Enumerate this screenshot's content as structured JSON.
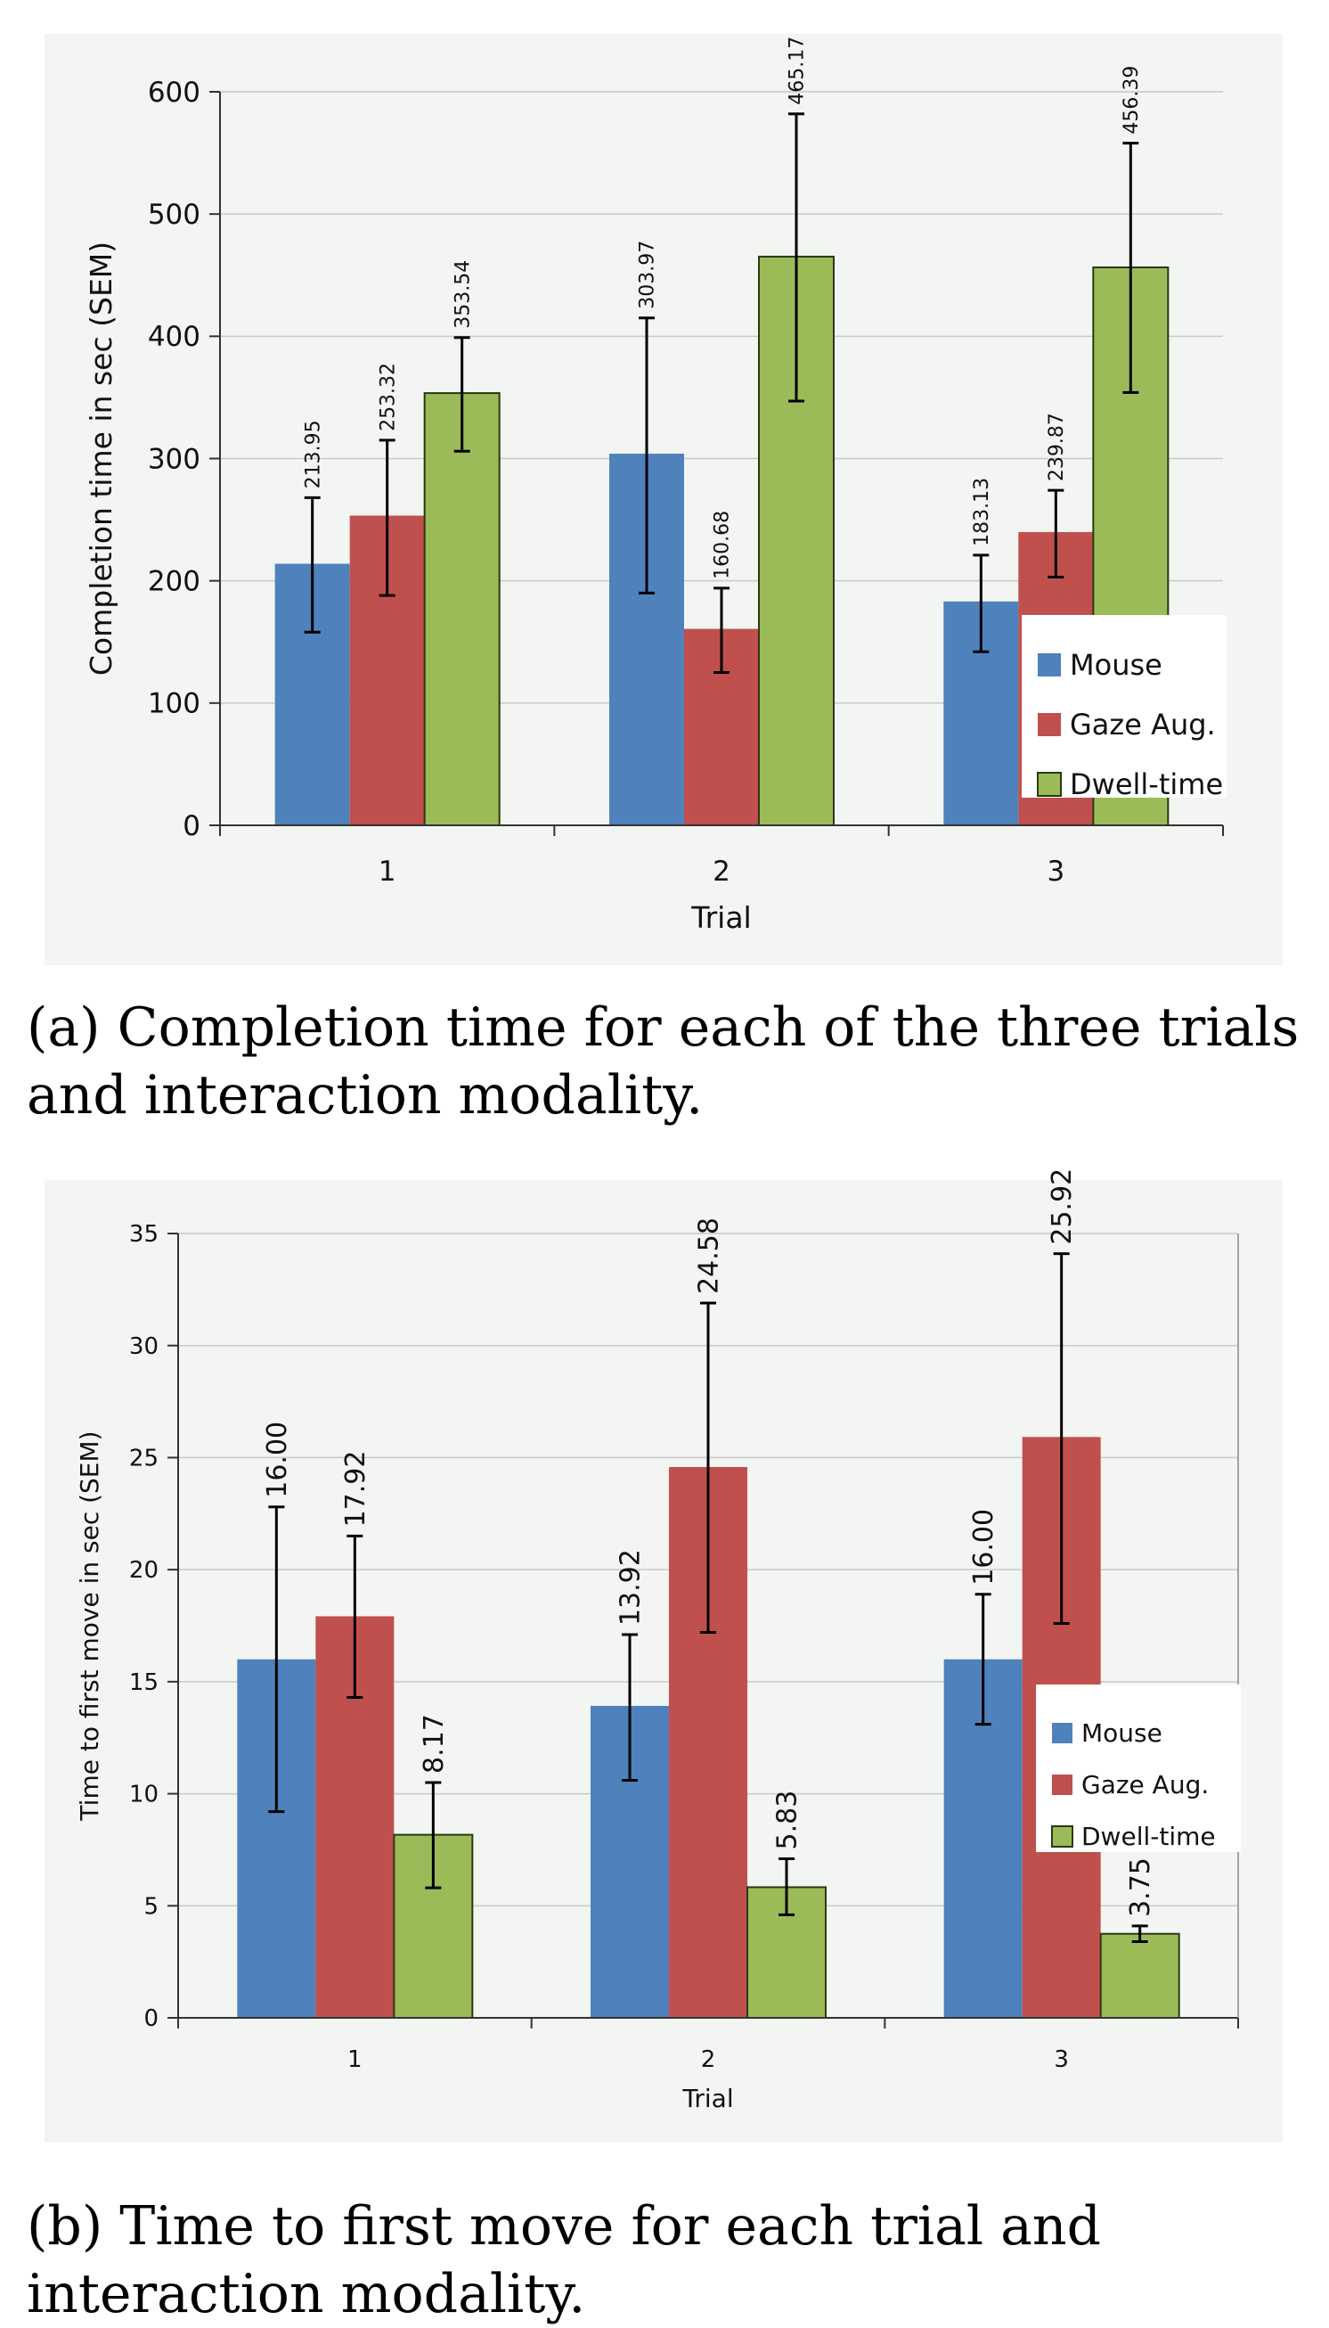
{
  "chart_data": [
    {
      "type": "bar",
      "ylabel": "Completion time in sec (SEM)",
      "xlabel": "Trial",
      "categories": [
        "1",
        "2",
        "3"
      ],
      "ylim": [
        0,
        600
      ],
      "yticks": [
        "0",
        "100",
        "200",
        "300",
        "400",
        "500",
        "600"
      ],
      "ytick_values": [
        0,
        100,
        200,
        300,
        400,
        500,
        600
      ],
      "series": [
        {
          "name": "Mouse",
          "color": "#4f81bd",
          "values": [
            213.95,
            303.97,
            183.13
          ],
          "labels": [
            "213.95",
            "303.97",
            "183.13"
          ],
          "err_low": [
            158,
            190,
            142
          ],
          "err_high": [
            268,
            415,
            221
          ]
        },
        {
          "name": "Gaze Aug.",
          "color": "#c0504d",
          "values": [
            253.32,
            160.68,
            239.87
          ],
          "labels": [
            "253.32",
            "160.68",
            "239.87"
          ],
          "err_low": [
            188,
            125,
            203
          ],
          "err_high": [
            315,
            194,
            274
          ]
        },
        {
          "name": "Dwell-time",
          "color": "#9bbb59",
          "values": [
            353.54,
            465.17,
            456.39
          ],
          "labels": [
            "353.54",
            "465.17",
            "456.39"
          ],
          "err_low": [
            306,
            347,
            354
          ],
          "err_high": [
            399,
            582,
            558
          ]
        }
      ],
      "legend": "right",
      "caption": "(a) Completion time for each of the three trials and interaction modality."
    },
    {
      "type": "bar",
      "ylabel": "Time to first move in sec (SEM)",
      "xlabel": "Trial",
      "categories": [
        "1",
        "2",
        "3"
      ],
      "ylim": [
        0,
        35
      ],
      "yticks": [
        "0",
        "5",
        "10",
        "15",
        "20",
        "25",
        "30",
        "35"
      ],
      "ytick_values": [
        0,
        5,
        10,
        15,
        20,
        25,
        30,
        35
      ],
      "series": [
        {
          "name": "Mouse",
          "color": "#4f81bd",
          "values": [
            16.0,
            13.92,
            16.0
          ],
          "labels": [
            "16.00",
            "13.92",
            "16.00"
          ],
          "err_low": [
            9.2,
            10.6,
            13.1
          ],
          "err_high": [
            22.8,
            17.1,
            18.9
          ]
        },
        {
          "name": "Gaze Aug.",
          "color": "#c0504d",
          "values": [
            17.92,
            24.58,
            25.92
          ],
          "labels": [
            "17.92",
            "24.58",
            "25.92"
          ],
          "err_low": [
            14.3,
            17.2,
            17.6
          ],
          "err_high": [
            21.5,
            31.9,
            34.1
          ]
        },
        {
          "name": "Dwell-time",
          "color": "#9bbb59",
          "values": [
            8.17,
            5.83,
            3.75
          ],
          "labels": [
            "8.17",
            "5.83",
            "3.75"
          ],
          "err_low": [
            5.8,
            4.6,
            3.4
          ],
          "err_high": [
            10.5,
            7.1,
            4.1
          ]
        }
      ],
      "legend": "right",
      "caption": "(b) Time to first move for each trial and interaction modality."
    }
  ]
}
